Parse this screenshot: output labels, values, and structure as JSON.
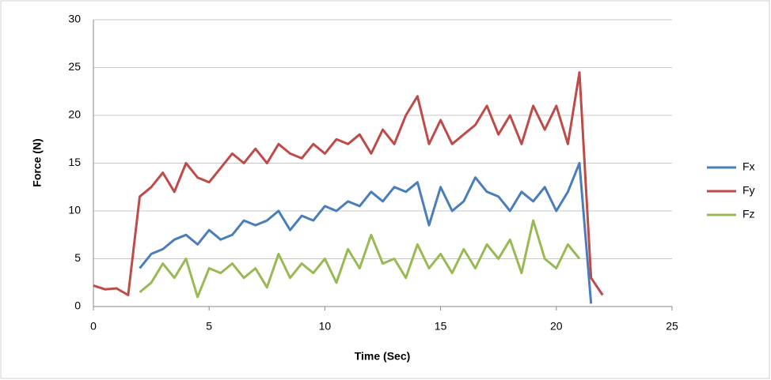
{
  "chart_data": {
    "type": "line",
    "x_label": "Time (Sec)",
    "y_label": "Force (N)",
    "x": [
      0,
      0.5,
      1,
      1.5,
      2,
      2.5,
      3,
      3.5,
      4,
      4.5,
      5,
      5.5,
      6,
      6.5,
      7,
      7.5,
      8,
      8.5,
      9,
      9.5,
      10,
      10.5,
      11,
      11.5,
      12,
      12.5,
      13,
      13.5,
      14,
      14.5,
      15,
      15.5,
      16,
      16.5,
      17,
      17.5,
      18,
      18.5,
      19,
      19.5,
      20,
      20.5,
      21,
      21.5,
      22
    ],
    "series": [
      {
        "name": "Fx",
        "color": "#4a7ebb",
        "values": [
          null,
          null,
          null,
          null,
          4,
          5.5,
          6,
          7,
          7.5,
          6.5,
          8,
          7,
          7.5,
          9,
          8.5,
          9,
          10,
          8,
          9.5,
          9,
          10.5,
          10,
          11,
          10.5,
          12,
          11,
          12.5,
          12,
          13,
          8.5,
          12.5,
          10,
          11,
          13.5,
          12,
          11.5,
          10,
          12,
          11,
          12.5,
          10,
          12,
          15,
          0.3,
          null
        ]
      },
      {
        "name": "Fy",
        "color": "#be4b48",
        "values": [
          2.2,
          1.8,
          1.9,
          1.2,
          11.5,
          12.5,
          14,
          12,
          15,
          13.5,
          13,
          14.5,
          16,
          15,
          16.5,
          15,
          17,
          16,
          15.5,
          17,
          16,
          17.5,
          17,
          18,
          16,
          18.5,
          17,
          20,
          22,
          17,
          19.5,
          17,
          18,
          19,
          21,
          18,
          20,
          17,
          21,
          18.5,
          21,
          17,
          24.5,
          3,
          1.2
        ]
      },
      {
        "name": "Fz",
        "color": "#98b954",
        "values": [
          null,
          null,
          null,
          null,
          1.5,
          2.5,
          4.5,
          3,
          5,
          1,
          4,
          3.5,
          4.5,
          3,
          4,
          2,
          5.5,
          3,
          4.5,
          3.5,
          5,
          2.5,
          6,
          4,
          7.5,
          4.5,
          5,
          3,
          6.5,
          4,
          5.5,
          3.5,
          6,
          4,
          6.5,
          5,
          7,
          3.5,
          9,
          5,
          4,
          6.5,
          5,
          null,
          null
        ]
      }
    ],
    "xlim": [
      0,
      25
    ],
    "xticks": [
      0,
      5,
      10,
      15,
      20,
      25
    ],
    "ylim": [
      0,
      30
    ],
    "yticks": [
      0,
      5,
      10,
      15,
      20,
      25,
      30
    ],
    "grid": true,
    "legend": "right"
  }
}
